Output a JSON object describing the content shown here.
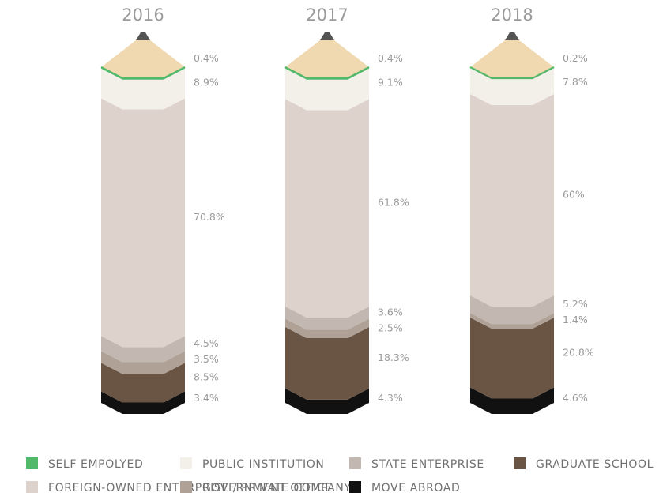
{
  "chart_data": {
    "type": "bar",
    "categories": [
      "2016",
      "2017",
      "2018"
    ],
    "series": [
      {
        "name": "SELF EMPOLYED",
        "color": "#52b86a",
        "values": [
          0.4,
          0.4,
          0.2
        ],
        "labels": [
          "0.4%",
          "0.4%",
          "0.2%"
        ]
      },
      {
        "name": "PUBLIC INSTITUTION",
        "color": "#f3f0ea",
        "values": [
          8.9,
          9.1,
          7.8
        ],
        "labels": [
          "8.9%",
          "9.1%",
          "7.8%"
        ]
      },
      {
        "name": "FOREIGN-OWNED ENTERPRISE / PRIVATE COMPANY",
        "color": "#ddd2cc",
        "values": [
          70.8,
          61.8,
          60
        ],
        "labels": [
          "70.8%",
          "61.8%",
          "60%"
        ]
      },
      {
        "name": "STATE ENTERPRISE",
        "color": "#c2b8b1",
        "values": [
          4.5,
          3.6,
          5.2
        ],
        "labels": [
          "4.5%",
          "3.6%",
          "5.2%"
        ]
      },
      {
        "name": "GOVERNMENT OFFICE",
        "color": "#afa196",
        "values": [
          3.5,
          2.5,
          1.4
        ],
        "labels": [
          "3.5%",
          "2.5%",
          "1.4%"
        ]
      },
      {
        "name": "GRADUATE SCHOOL",
        "color": "#6a5545",
        "values": [
          8.5,
          18.3,
          20.8
        ],
        "labels": [
          "8.5%",
          "18.3%",
          "20.8%"
        ]
      },
      {
        "name": "MOVE ABROAD",
        "color": "#111111",
        "values": [
          3.4,
          4.3,
          4.6
        ],
        "labels": [
          "3.4%",
          "4.3%",
          "4.6%"
        ]
      }
    ],
    "legend": {
      "placement": "bottom",
      "rows": [
        [
          "SELF EMPOLYED",
          "PUBLIC INSTITUTION",
          "STATE ENTERPRISE",
          "GRADUATE SCHOOL"
        ],
        [
          "FOREIGN-OWNED ENTERPRISE / PRIVATE COMPANY",
          "GOVERNMENT OFFICE",
          "MOVE ABROAD"
        ]
      ]
    },
    "pencil_colors": {
      "wood": "#f0d9b0",
      "lead": "#545454"
    }
  }
}
